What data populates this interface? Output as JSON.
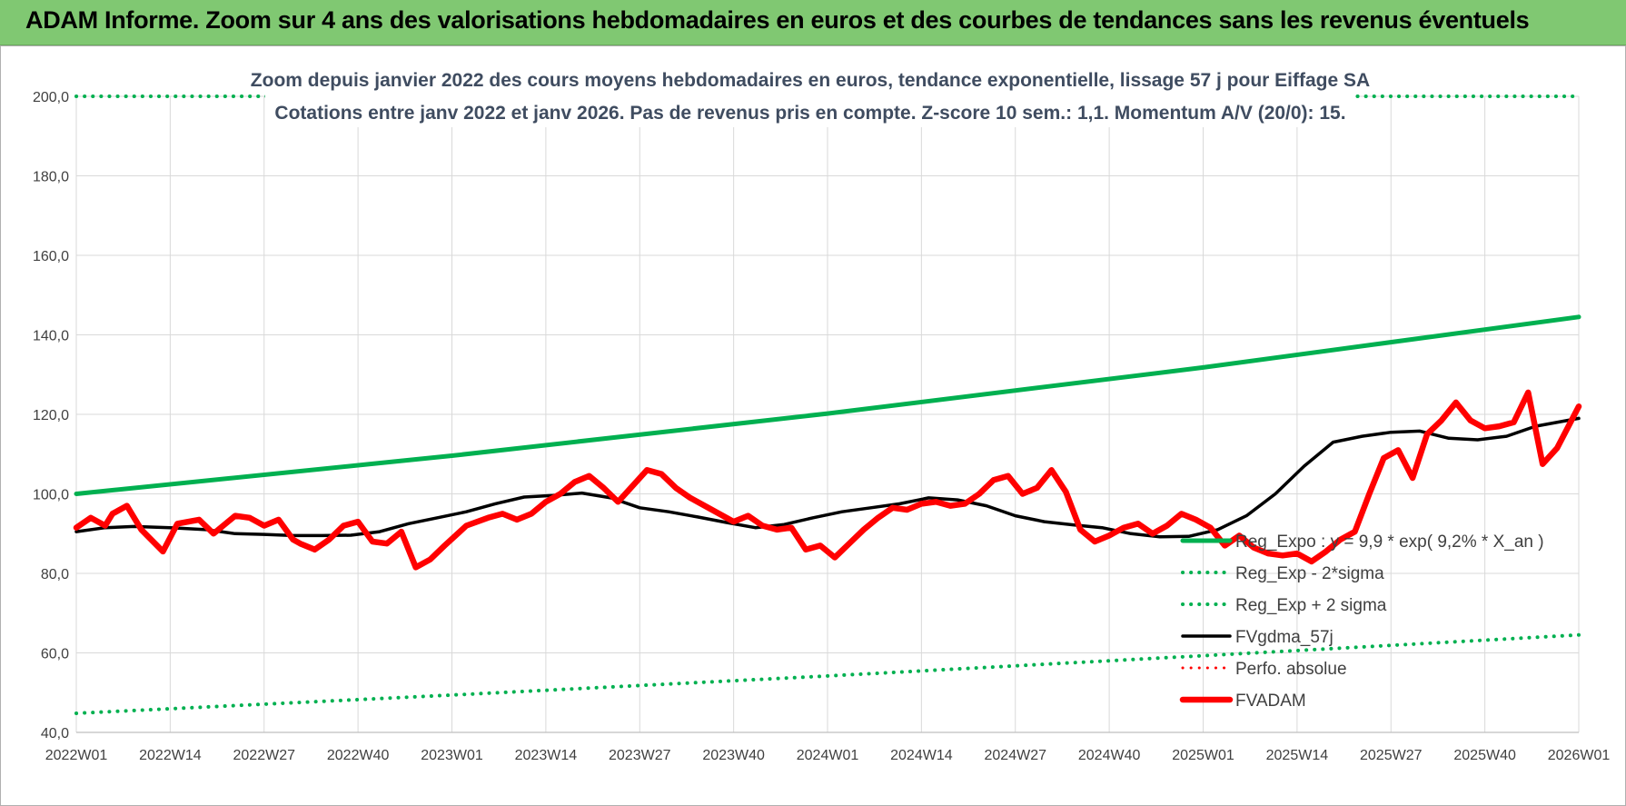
{
  "page": {
    "banner_title": "ADAM Informe. Zoom sur 4 ans des valorisations hebdomadaires en euros et des courbes de tendances sans les revenus éventuels"
  },
  "chart_data": {
    "type": "line",
    "title": "Zoom depuis janvier 2022 des cours moyens hebdomadaires en euros, tendance exponentielle, lissage 57 j pour Eiffage SA",
    "subtitle": "Cotations entre janv 2022 et janv 2026. Pas de revenus pris en compte. Z-score 10 sem.: 1,1. Momentum A/V (20/0): 15.",
    "xlabel": "",
    "ylabel": "",
    "ylim": [
      40,
      200
    ],
    "y_ticks": [
      "40,0",
      "60,0",
      "80,0",
      "100,0",
      "120,0",
      "140,0",
      "160,0",
      "180,0",
      "200,0"
    ],
    "x_tick_labels": [
      "2022W01",
      "2022W14",
      "2022W27",
      "2022W40",
      "2023W01",
      "2023W14",
      "2023W27",
      "2023W40",
      "2024W01",
      "2024W14",
      "2024W27",
      "2024W40",
      "2025W01",
      "2025W14",
      "2025W27",
      "2025W40",
      "2026W01"
    ],
    "x_range_weeks": [
      0,
      208
    ],
    "grid": true,
    "legend_position": "lower-right",
    "colors": {
      "reg_expo": "#00b050",
      "sigma": "#00b050",
      "fvgdma": "#000000",
      "perfo": "#ff0000",
      "fvadam": "#ff0000"
    },
    "series": [
      {
        "name": "Reg_Expo : y = 9,9 * exp( 9,2% *  X_an )",
        "style": "solid",
        "x_weeks": [
          0,
          52,
          104,
          156,
          208
        ],
        "values": [
          100.0,
          109.6,
          120.2,
          131.8,
          144.5
        ]
      },
      {
        "name": "Reg_Exp - 2*sigma",
        "style": "dotted",
        "x_weeks": [
          0,
          52,
          104,
          156,
          208
        ],
        "values": [
          44.8,
          49.4,
          54.2,
          59.3,
          64.5
        ]
      },
      {
        "name": "Reg_Exp + 2 sigma",
        "style": "dotted",
        "x_weeks": [
          0,
          208
        ],
        "values": [
          200.0,
          200.0
        ]
      },
      {
        "name": "FVgdma_57j",
        "style": "solid",
        "x_weeks": [
          0,
          4,
          8,
          13,
          18,
          22,
          26,
          30,
          34,
          38,
          42,
          46,
          50,
          54,
          58,
          62,
          66,
          70,
          74,
          78,
          82,
          86,
          90,
          94,
          98,
          102,
          106,
          110,
          114,
          118,
          122,
          126,
          130,
          134,
          138,
          142,
          146,
          150,
          154,
          158,
          162,
          166,
          170,
          174,
          178,
          182,
          186,
          190,
          194,
          198,
          202,
          208
        ],
        "values": [
          90.5,
          91.5,
          91.8,
          91.5,
          91.0,
          90.0,
          89.8,
          89.5,
          89.5,
          89.6,
          90.5,
          92.5,
          94.0,
          95.5,
          97.5,
          99.2,
          99.6,
          100.2,
          99.0,
          96.5,
          95.5,
          94.2,
          92.8,
          91.5,
          92.3,
          94.0,
          95.5,
          96.5,
          97.5,
          99.0,
          98.5,
          97.0,
          94.5,
          93.0,
          92.2,
          91.5,
          90.0,
          89.2,
          89.3,
          91.0,
          94.5,
          100.0,
          107.0,
          113.0,
          114.5,
          115.5,
          115.8,
          114.0,
          113.6,
          114.5,
          117.0,
          119.0
        ]
      },
      {
        "name": "Perfo. absolue",
        "style": "dotted",
        "x_weeks": [],
        "values": []
      },
      {
        "name": "FVADAM",
        "style": "solid-thick",
        "x_weeks": [
          0,
          2,
          4,
          5,
          7,
          9,
          12,
          14,
          17,
          19,
          22,
          24,
          26,
          28,
          30,
          31,
          33,
          35,
          37,
          39,
          41,
          43,
          45,
          47,
          49,
          51,
          54,
          57,
          59,
          61,
          63,
          65,
          67,
          69,
          71,
          73,
          75,
          77,
          79,
          81,
          83,
          85,
          87,
          89,
          91,
          93,
          95,
          97,
          99,
          101,
          103,
          105,
          107,
          109,
          111,
          113,
          115,
          117,
          119,
          121,
          123,
          125,
          127,
          129,
          131,
          133,
          135,
          137,
          139,
          141,
          143,
          145,
          147,
          149,
          151,
          153,
          155,
          157,
          159,
          161,
          163,
          165,
          167,
          169,
          171,
          173,
          175,
          177,
          179,
          181,
          183,
          185,
          187,
          189,
          191,
          193,
          195,
          197,
          199,
          201,
          203,
          205,
          208
        ],
        "values": [
          91.5,
          94.0,
          92.0,
          95.0,
          97.0,
          91.0,
          85.5,
          92.5,
          93.5,
          90.0,
          94.5,
          94.0,
          92.0,
          93.5,
          88.5,
          87.5,
          86.0,
          88.5,
          92.0,
          93.0,
          88.0,
          87.5,
          90.5,
          81.5,
          83.5,
          87.0,
          92.0,
          94.0,
          95.0,
          93.5,
          95.0,
          98.0,
          100.0,
          103.0,
          104.5,
          101.5,
          98.0,
          102.0,
          106.0,
          105.0,
          101.5,
          99.0,
          97.0,
          95.0,
          93.0,
          94.5,
          92.0,
          91.0,
          91.5,
          86.0,
          87.0,
          84.0,
          87.5,
          91.0,
          94.0,
          96.5,
          96.0,
          97.5,
          98.0,
          97.0,
          97.5,
          100.0,
          103.5,
          104.5,
          100.0,
          101.5,
          106.0,
          100.5,
          91.0,
          88.0,
          89.5,
          91.5,
          92.5,
          90.0,
          92.0,
          95.0,
          93.5,
          91.5,
          87.0,
          89.5,
          86.5,
          85.0,
          84.5,
          85.0,
          83.0,
          85.5,
          88.5,
          90.5,
          100.0,
          109.0,
          111.0,
          104.0,
          115.0,
          118.5,
          123.0,
          118.5,
          116.5,
          117.0,
          118.0,
          125.5,
          107.5,
          111.5,
          122.0
        ]
      }
    ]
  }
}
